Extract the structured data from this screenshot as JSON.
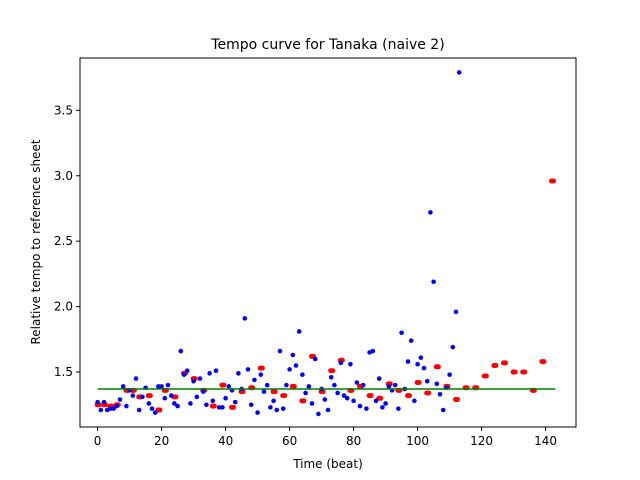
{
  "chart_data": {
    "type": "scatter",
    "title": "Tempo curve for Tanaka (naive 2)",
    "xlabel": "Time (beat)",
    "ylabel": "Relative tempo to reference sheet",
    "xlim": [
      -5.5,
      149.5
    ],
    "ylim": [
      1.08,
      3.9
    ],
    "xticks": [
      0,
      20,
      40,
      60,
      80,
      100,
      120,
      140
    ],
    "yticks": [
      1.5,
      2.0,
      2.5,
      3.0,
      3.5
    ],
    "grid": false,
    "colors": {
      "blue": "#0000ff",
      "red": "#ff0000",
      "green": "#008000"
    },
    "series": [
      {
        "values": [
          [
            0,
            1.27
          ],
          [
            1,
            1.21
          ],
          [
            2,
            1.27
          ],
          [
            3,
            1.21
          ],
          [
            4,
            1.22
          ],
          [
            5,
            1.22
          ],
          [
            6,
            1.24
          ],
          [
            7,
            1.29
          ],
          [
            8,
            1.39
          ],
          [
            9,
            1.24
          ],
          [
            10,
            1.36
          ],
          [
            11,
            1.32
          ],
          [
            12,
            1.45
          ],
          [
            13,
            1.21
          ],
          [
            14,
            1.31
          ],
          [
            15,
            1.38
          ],
          [
            16,
            1.26
          ],
          [
            17,
            1.22
          ],
          [
            18,
            1.19
          ],
          [
            19,
            1.39
          ],
          [
            20,
            1.39
          ],
          [
            21,
            1.3
          ],
          [
            22,
            1.4
          ],
          [
            23,
            1.32
          ],
          [
            24,
            1.26
          ],
          [
            25,
            1.24
          ],
          [
            26,
            1.66
          ],
          [
            27,
            1.48
          ],
          [
            28,
            1.51
          ],
          [
            29,
            1.26
          ],
          [
            30,
            1.43
          ],
          [
            31,
            1.31
          ],
          [
            32,
            1.45
          ],
          [
            33,
            1.35
          ],
          [
            34,
            1.25
          ],
          [
            35,
            1.49
          ],
          [
            36,
            1.28
          ],
          [
            37,
            1.51
          ],
          [
            38,
            1.23
          ],
          [
            39,
            1.23
          ],
          [
            40,
            1.3
          ],
          [
            41,
            1.39
          ],
          [
            42,
            1.36
          ],
          [
            43,
            1.27
          ],
          [
            44,
            1.49
          ],
          [
            45,
            1.37
          ],
          [
            46,
            1.91
          ],
          [
            47,
            1.52
          ],
          [
            48,
            1.25
          ],
          [
            49,
            1.44
          ],
          [
            50,
            1.19
          ],
          [
            51,
            1.48
          ],
          [
            52,
            1.35
          ],
          [
            53,
            1.4
          ],
          [
            54,
            1.23
          ],
          [
            55,
            1.28
          ],
          [
            56,
            1.21
          ],
          [
            57,
            1.66
          ],
          [
            58,
            1.22
          ],
          [
            59,
            1.4
          ],
          [
            60,
            1.52
          ],
          [
            61,
            1.63
          ],
          [
            62,
            1.55
          ],
          [
            63,
            1.81
          ],
          [
            64,
            1.48
          ],
          [
            65,
            1.34
          ],
          [
            66,
            1.39
          ],
          [
            67,
            1.26
          ],
          [
            68,
            1.6
          ],
          [
            69,
            1.18
          ],
          [
            70,
            1.37
          ],
          [
            71,
            1.29
          ],
          [
            72,
            1.21
          ],
          [
            73,
            1.46
          ],
          [
            74,
            1.4
          ],
          [
            75,
            1.34
          ],
          [
            76,
            1.57
          ],
          [
            77,
            1.32
          ],
          [
            78,
            1.3
          ],
          [
            79,
            1.56
          ],
          [
            80,
            1.28
          ],
          [
            81,
            1.42
          ],
          [
            82,
            1.24
          ],
          [
            83,
            1.4
          ],
          [
            84,
            1.22
          ],
          [
            85,
            1.65
          ],
          [
            86,
            1.66
          ],
          [
            87,
            1.28
          ],
          [
            88,
            1.45
          ],
          [
            89,
            1.23
          ],
          [
            90,
            1.26
          ],
          [
            91,
            1.39
          ],
          [
            92,
            1.36
          ],
          [
            93,
            1.4
          ],
          [
            94,
            1.22
          ],
          [
            95,
            1.8
          ],
          [
            96,
            1.37
          ],
          [
            97,
            1.58
          ],
          [
            98,
            1.74
          ],
          [
            99,
            1.28
          ],
          [
            100,
            1.56
          ],
          [
            101,
            1.61
          ],
          [
            102,
            1.53
          ],
          [
            103,
            1.43
          ],
          [
            104,
            2.72
          ],
          [
            105,
            2.19
          ],
          [
            106,
            1.41
          ],
          [
            107,
            1.33
          ],
          [
            108,
            1.21
          ],
          [
            109,
            1.38
          ],
          [
            110,
            1.48
          ],
          [
            111,
            1.69
          ],
          [
            112,
            1.96
          ],
          [
            113,
            3.79
          ]
        ]
      },
      {
        "values": [
          [
            0,
            1.25
          ],
          [
            2,
            1.25
          ],
          [
            4,
            1.24
          ],
          [
            6,
            1.25
          ],
          [
            9,
            1.36
          ],
          [
            11,
            1.36
          ],
          [
            13,
            1.31
          ],
          [
            16,
            1.32
          ],
          [
            19,
            1.21
          ],
          [
            21,
            1.36
          ],
          [
            24,
            1.31
          ],
          [
            27,
            1.49
          ],
          [
            30,
            1.45
          ],
          [
            33,
            1.36
          ],
          [
            36,
            1.24
          ],
          [
            39,
            1.4
          ],
          [
            42,
            1.23
          ],
          [
            45,
            1.35
          ],
          [
            48,
            1.38
          ],
          [
            51,
            1.53
          ],
          [
            55,
            1.35
          ],
          [
            58,
            1.32
          ],
          [
            61,
            1.39
          ],
          [
            64,
            1.28
          ],
          [
            67,
            1.62
          ],
          [
            70,
            1.35
          ],
          [
            73,
            1.51
          ],
          [
            76,
            1.59
          ],
          [
            79,
            1.36
          ],
          [
            82,
            1.39
          ],
          [
            85,
            1.32
          ],
          [
            88,
            1.3
          ],
          [
            91,
            1.41
          ],
          [
            94,
            1.36
          ],
          [
            97,
            1.32
          ],
          [
            100,
            1.42
          ],
          [
            103,
            1.34
          ],
          [
            106,
            1.54
          ],
          [
            109,
            1.39
          ],
          [
            112,
            1.29
          ],
          [
            115,
            1.38
          ],
          [
            118,
            1.38
          ],
          [
            121,
            1.47
          ],
          [
            124,
            1.55
          ],
          [
            127,
            1.57
          ],
          [
            130,
            1.5
          ],
          [
            133,
            1.5
          ],
          [
            136,
            1.36
          ],
          [
            139,
            1.58
          ],
          [
            142,
            2.96
          ]
        ]
      },
      {
        "values": [
          [
            0,
            1.37
          ],
          [
            143,
            1.37
          ]
        ]
      }
    ]
  }
}
